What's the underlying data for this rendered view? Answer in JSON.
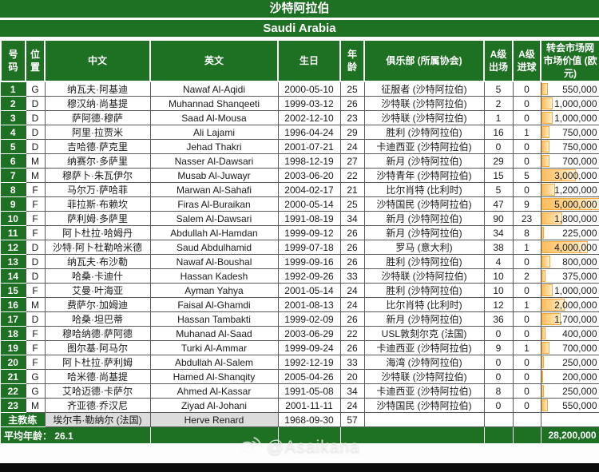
{
  "title_cn": "沙特阿拉伯",
  "title_en": "Saudi Arabia",
  "columns": {
    "no": "号\n码",
    "pos": "位\n置",
    "cn": "中文",
    "en": "英文",
    "dob": "生日",
    "age": "年\n龄",
    "club": "俱乐部 (所属协会)",
    "caps": "A级\n出场",
    "goals": "A级\n进球",
    "value": "转会市场网\n市场价值 (欧\n元)"
  },
  "players": [
    {
      "no": "1",
      "pos": "G",
      "cn": "纳瓦夫·阿基迪",
      "en": "Nawaf Al-Aqidi",
      "dob": "2000-05-10",
      "age": "25",
      "club": "征服者 (沙特阿拉伯)",
      "caps": "5",
      "goals": "0",
      "value": "550,000",
      "value_num": 550000
    },
    {
      "no": "2",
      "pos": "D",
      "cn": "穆汉纳·尚基提",
      "en": "Muhannad Shanqeeti",
      "dob": "1999-03-12",
      "age": "26",
      "club": "沙特联 (沙特阿拉伯)",
      "caps": "2",
      "goals": "0",
      "value": "1,000,000",
      "value_num": 1000000
    },
    {
      "no": "3",
      "pos": "D",
      "cn": "萨阿德·穆萨",
      "en": "Saad Al-Mousa",
      "dob": "2002-12-10",
      "age": "23",
      "club": "沙特联 (沙特阿拉伯)",
      "caps": "1",
      "goals": "0",
      "value": "1,000,000",
      "value_num": 1000000
    },
    {
      "no": "4",
      "pos": "D",
      "cn": "阿里·拉贾米",
      "en": "Ali Lajami",
      "dob": "1996-04-24",
      "age": "29",
      "club": "胜利 (沙特阿拉伯)",
      "caps": "16",
      "goals": "1",
      "value": "750,000",
      "value_num": 750000
    },
    {
      "no": "5",
      "pos": "D",
      "cn": "吉哈德·萨克里",
      "en": "Jehad Thakri",
      "dob": "2001-07-21",
      "age": "24",
      "club": "卡迪西亚 (沙特阿拉伯)",
      "caps": "0",
      "goals": "0",
      "value": "750,000",
      "value_num": 750000
    },
    {
      "no": "6",
      "pos": "M",
      "cn": "纳赛尔·多萨里",
      "en": "Nasser Al-Dawsari",
      "dob": "1998-12-19",
      "age": "27",
      "club": "新月 (沙特阿拉伯)",
      "caps": "29",
      "goals": "0",
      "value": "700,000",
      "value_num": 700000
    },
    {
      "no": "7",
      "pos": "M",
      "cn": "穆萨卜·朱瓦伊尔",
      "en": "Musab Al-Juwayr",
      "dob": "2003-06-20",
      "age": "22",
      "club": "沙特青年 (沙特阿拉伯)",
      "caps": "15",
      "goals": "5",
      "value": "3,000,000",
      "value_num": 3000000
    },
    {
      "no": "8",
      "pos": "F",
      "cn": "马尔万·萨哈菲",
      "en": "Marwan Al-Sahafi",
      "dob": "2004-02-17",
      "age": "21",
      "club": "比尔肖特 (比利时)",
      "caps": "5",
      "goals": "0",
      "value": "1,200,000",
      "value_num": 1200000
    },
    {
      "no": "9",
      "pos": "F",
      "cn": "菲拉斯·布赖坎",
      "en": "Firas Al-Buraikan",
      "dob": "2000-05-14",
      "age": "25",
      "club": "沙特国民 (沙特阿拉伯)",
      "caps": "47",
      "goals": "9",
      "value": "5,000,000",
      "value_num": 5000000
    },
    {
      "no": "10",
      "pos": "F",
      "cn": "萨利姆·多萨里",
      "en": "Salem Al-Dawsari",
      "dob": "1991-08-19",
      "age": "34",
      "club": "新月 (沙特阿拉伯)",
      "caps": "90",
      "goals": "23",
      "value": "1,800,000",
      "value_num": 1800000
    },
    {
      "no": "11",
      "pos": "F",
      "cn": "阿卜杜拉·哈姆丹",
      "en": "Abdullah Al-Hamdan",
      "dob": "1999-09-12",
      "age": "26",
      "club": "新月 (沙特阿拉伯)",
      "caps": "34",
      "goals": "8",
      "value": "225,000",
      "value_num": 225000
    },
    {
      "no": "12",
      "pos": "D",
      "cn": "沙特·阿卜杜勒哈米德",
      "en": "Saud Abdulhamid",
      "dob": "1999-07-18",
      "age": "26",
      "club": "罗马 (意大利)",
      "caps": "38",
      "goals": "1",
      "value": "4,000,000",
      "value_num": 4000000
    },
    {
      "no": "13",
      "pos": "D",
      "cn": "纳瓦夫·布沙勒",
      "en": "Nawaf Al-Boushal",
      "dob": "1999-09-16",
      "age": "26",
      "club": "胜利 (沙特阿拉伯)",
      "caps": "4",
      "goals": "0",
      "value": "800,000",
      "value_num": 800000
    },
    {
      "no": "14",
      "pos": "D",
      "cn": "哈桑·卡迪什",
      "en": "Hassan Kadesh",
      "dob": "1992-09-26",
      "age": "33",
      "club": "沙特联 (沙特阿拉伯)",
      "caps": "10",
      "goals": "2",
      "value": "375,000",
      "value_num": 375000
    },
    {
      "no": "15",
      "pos": "F",
      "cn": "艾曼·叶海亚",
      "en": "Ayman Yahya",
      "dob": "2001-05-14",
      "age": "24",
      "club": "胜利 (沙特阿拉伯)",
      "caps": "10",
      "goals": "0",
      "value": "1,000,000",
      "value_num": 1000000
    },
    {
      "no": "16",
      "pos": "M",
      "cn": "费萨尔·加姆迪",
      "en": "Faisal Al-Ghamdi",
      "dob": "2001-08-13",
      "age": "24",
      "club": "比尔肖特 (比利时)",
      "caps": "12",
      "goals": "1",
      "value": "2,000,000",
      "value_num": 2000000
    },
    {
      "no": "17",
      "pos": "D",
      "cn": "哈桑·坦巴蒂",
      "en": "Hassan Tambakti",
      "dob": "1999-02-09",
      "age": "26",
      "club": "新月 (沙特阿拉伯)",
      "caps": "36",
      "goals": "0",
      "value": "1,700,000",
      "value_num": 1700000
    },
    {
      "no": "18",
      "pos": "F",
      "cn": "穆哈纳德·萨阿德",
      "en": "Muhanad Al-Saad",
      "dob": "2003-06-29",
      "age": "22",
      "club": "USL敦刻尔克 (法国)",
      "caps": "0",
      "goals": "0",
      "value": "400,000",
      "value_num": 400000
    },
    {
      "no": "19",
      "pos": "F",
      "cn": "图尔基·阿马尔",
      "en": "Turki Al-Ammar",
      "dob": "1999-09-24",
      "age": "26",
      "club": "卡迪西亚 (沙特阿拉伯)",
      "caps": "9",
      "goals": "1",
      "value": "700,000",
      "value_num": 700000
    },
    {
      "no": "20",
      "pos": "F",
      "cn": "阿卜杜拉·萨利姆",
      "en": "Abdullah Al-Salem",
      "dob": "1992-12-19",
      "age": "33",
      "club": "海湾 (沙特阿拉伯)",
      "caps": "0",
      "goals": "0",
      "value": "250,000",
      "value_num": 250000
    },
    {
      "no": "21",
      "pos": "G",
      "cn": "哈米德·尚基提",
      "en": "Hamed Al-Shanqity",
      "dob": "2005-04-26",
      "age": "20",
      "club": "沙特联 (沙特阿拉伯)",
      "caps": "0",
      "goals": "0",
      "value": "200,000",
      "value_num": 200000
    },
    {
      "no": "22",
      "pos": "G",
      "cn": "艾哈迈德·卡萨尔",
      "en": "Ahmed Al-Kassar",
      "dob": "1991-05-08",
      "age": "34",
      "club": "卡迪西亚 (沙特阿拉伯)",
      "caps": "8",
      "goals": "0",
      "value": "250,000",
      "value_num": 250000
    },
    {
      "no": "23",
      "pos": "M",
      "cn": "齐亚德·乔汉尼",
      "en": "Ziyad Al-Johani",
      "dob": "2001-11-11",
      "age": "24",
      "club": "沙特国民 (沙特阿拉伯)",
      "caps": "0",
      "goals": "0",
      "value": "550,000",
      "value_num": 550000
    }
  ],
  "coach": {
    "label": "主教练",
    "cn": "埃尔韦·勒纳尔 (法国)",
    "en": "Herve Renard",
    "dob": "1968-09-30",
    "age": "57"
  },
  "summary": {
    "avg_age_label": "平均年龄：",
    "avg_age": "26.1",
    "total_value": "28,200,000"
  },
  "watermark": {
    "text": "@Asaikana",
    "icon": "weibo-icon"
  },
  "value_bar_max": 5000000,
  "colors": {
    "green": "#1E7023",
    "bar_fill": "#FDBE5F",
    "bar_border": "#F5A93B",
    "coach_gray": "#DCDCDC"
  }
}
